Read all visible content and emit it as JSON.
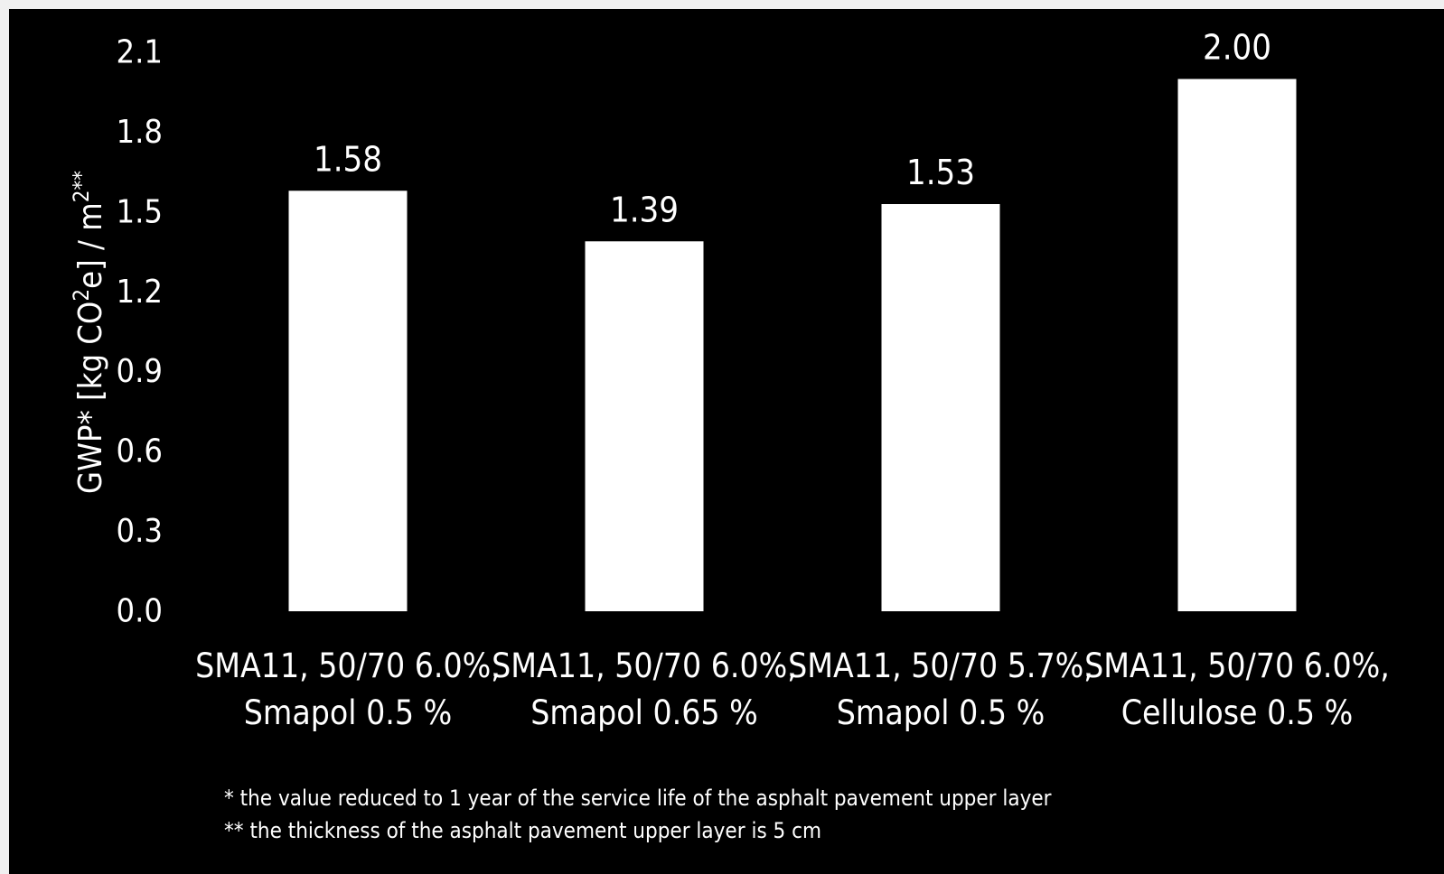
{
  "chart_data": {
    "type": "bar",
    "categories": [
      [
        "SMA11, 50/70 6.0%,",
        "Smapol 0.5 %"
      ],
      [
        "SMA11, 50/70 6.0%,",
        "Smapol 0.65 %"
      ],
      [
        "SMA11, 50/70 5.7%,",
        "Smapol 0.5 %"
      ],
      [
        "SMA11, 50/70 6.0%,",
        "Cellulose 0.5 %"
      ]
    ],
    "values": [
      1.58,
      1.39,
      1.53,
      2.0
    ],
    "data_labels": [
      "1.58",
      "1.39",
      "1.53",
      "2.00"
    ],
    "ylabel": {
      "main": "GWP* [kg CO",
      "sup1": "2",
      "mid": "e] / m",
      "sup2": "2**"
    },
    "ylim": [
      0,
      2.1
    ],
    "yticks": [
      "0.0",
      "0.3",
      "0.6",
      "0.9",
      "1.2",
      "1.5",
      "1.8",
      "2.1"
    ],
    "grid": false,
    "bar_color": "#ffffff",
    "background": "#000000"
  },
  "footnotes": [
    "* the value reduced to 1 year of the service life of the asphalt pavement upper layer",
    "** the thickness of the asphalt pavement upper layer is 5 cm"
  ]
}
